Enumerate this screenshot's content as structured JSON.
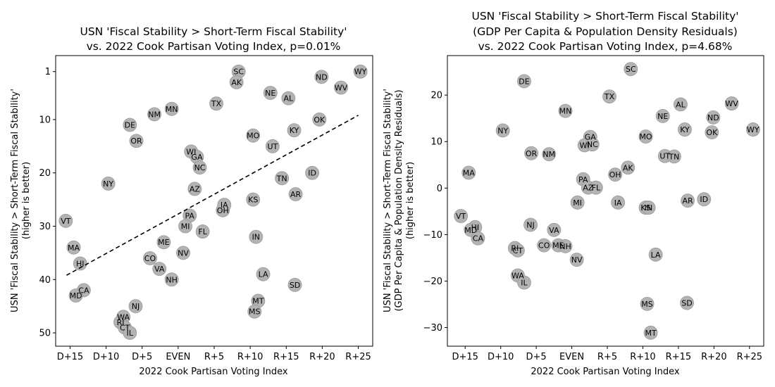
{
  "chart_data": [
    {
      "type": "scatter",
      "title_lines": [
        "USN 'Fiscal Stability > Short-Term Fiscal Stability'",
        "vs. 2022 Cook Partisan Voting Index, p=0.01%"
      ],
      "xlabel": "2022 Cook Partisan Voting Index",
      "ylabel_lines": [
        "USN 'Fiscal Stability > Short-Term Fiscal Stability'",
        "(higher is better)"
      ],
      "xlim": [
        -17,
        27
      ],
      "ylim": [
        52.5,
        -2
      ],
      "y_inverted": true,
      "x_ticks": [
        -15,
        -10,
        -5,
        0,
        5,
        10,
        15,
        20,
        25
      ],
      "x_tick_labels": [
        "D+15",
        "D+10",
        "D+5",
        "EVEN",
        "R+5",
        "R+10",
        "R+15",
        "R+20",
        "R+25"
      ],
      "y_ticks": [
        1,
        10,
        20,
        30,
        40,
        50
      ],
      "y_tick_labels": [
        "1",
        "10",
        "20",
        "30",
        "40",
        "50"
      ],
      "trendline": {
        "x": [
          -15.5,
          25
        ],
        "y": [
          39.2,
          9.2
        ],
        "style": "dashed",
        "color": "#000000"
      },
      "marker_color": "#b3b3b3",
      "marker_edge": "#999999",
      "points": [
        {
          "state": "VT",
          "x": -15.6,
          "y": 29
        },
        {
          "state": "MA",
          "x": -14.5,
          "y": 34
        },
        {
          "state": "HI",
          "x": -13.6,
          "y": 37
        },
        {
          "state": "CA",
          "x": -13.1,
          "y": 42
        },
        {
          "state": "MD",
          "x": -14.2,
          "y": 43
        },
        {
          "state": "NY",
          "x": -9.7,
          "y": 22
        },
        {
          "state": "DE",
          "x": -6.7,
          "y": 11
        },
        {
          "state": "OR",
          "x": -5.8,
          "y": 14
        },
        {
          "state": "NM",
          "x": -3.3,
          "y": 9
        },
        {
          "state": "MN",
          "x": -0.9,
          "y": 8
        },
        {
          "state": "WA",
          "x": -7.6,
          "y": 47
        },
        {
          "state": "RI",
          "x": -8.0,
          "y": 48
        },
        {
          "state": "CT",
          "x": -7.4,
          "y": 49
        },
        {
          "state": "IL",
          "x": -6.7,
          "y": 50
        },
        {
          "state": "NJ",
          "x": -5.9,
          "y": 45
        },
        {
          "state": "CO",
          "x": -3.9,
          "y": 36
        },
        {
          "state": "VA",
          "x": -2.6,
          "y": 38
        },
        {
          "state": "ME",
          "x": -2.0,
          "y": 33
        },
        {
          "state": "NH",
          "x": -0.9,
          "y": 40
        },
        {
          "state": "NV",
          "x": 0.7,
          "y": 35
        },
        {
          "state": "WI",
          "x": 1.8,
          "y": 16
        },
        {
          "state": "GA",
          "x": 2.6,
          "y": 17
        },
        {
          "state": "NC",
          "x": 3.0,
          "y": 19
        },
        {
          "state": "AZ",
          "x": 2.3,
          "y": 23
        },
        {
          "state": "PA",
          "x": 1.6,
          "y": 28
        },
        {
          "state": "MI",
          "x": 1.0,
          "y": 30
        },
        {
          "state": "FL",
          "x": 3.4,
          "y": 31
        },
        {
          "state": "OH",
          "x": 6.2,
          "y": 27
        },
        {
          "state": "IA",
          "x": 6.4,
          "y": 26
        },
        {
          "state": "TX",
          "x": 5.3,
          "y": 7
        },
        {
          "state": "SC",
          "x": 8.4,
          "y": 1
        },
        {
          "state": "AK",
          "x": 8.1,
          "y": 3
        },
        {
          "state": "NE",
          "x": 12.8,
          "y": 5
        },
        {
          "state": "AL",
          "x": 15.3,
          "y": 6
        },
        {
          "state": "MO",
          "x": 10.4,
          "y": 13
        },
        {
          "state": "UT",
          "x": 13.1,
          "y": 15
        },
        {
          "state": "KS",
          "x": 10.4,
          "y": 25
        },
        {
          "state": "IN",
          "x": 10.8,
          "y": 32
        },
        {
          "state": "LA",
          "x": 11.8,
          "y": 39
        },
        {
          "state": "MT",
          "x": 11.1,
          "y": 44
        },
        {
          "state": "MS",
          "x": 10.6,
          "y": 46
        },
        {
          "state": "KY",
          "x": 16.1,
          "y": 12
        },
        {
          "state": "TN",
          "x": 14.4,
          "y": 21
        },
        {
          "state": "AR",
          "x": 16.3,
          "y": 24
        },
        {
          "state": "SD",
          "x": 16.2,
          "y": 41
        },
        {
          "state": "ID",
          "x": 18.6,
          "y": 20
        },
        {
          "state": "OK",
          "x": 19.6,
          "y": 10
        },
        {
          "state": "ND",
          "x": 19.9,
          "y": 2
        },
        {
          "state": "WV",
          "x": 22.6,
          "y": 4
        },
        {
          "state": "WY",
          "x": 25.3,
          "y": 1
        }
      ]
    },
    {
      "type": "scatter",
      "title_lines": [
        "USN 'Fiscal Stability > Short-Term Fiscal Stability'",
        "(GDP Per Capita & Population Density Residuals)",
        "vs. 2022 Cook Partisan Voting Index, p=4.68%"
      ],
      "xlabel": "2022 Cook Partisan Voting Index",
      "ylabel_lines": [
        "USN 'Fiscal Stability > Short-Term Fiscal Stability'",
        "(GDP Per Capita & Population Density Residuals)",
        "(higher is better)"
      ],
      "xlim": [
        -17.5,
        27
      ],
      "ylim": [
        -34,
        28.5
      ],
      "y_inverted": false,
      "x_ticks": [
        -15,
        -10,
        -5,
        0,
        5,
        10,
        15,
        20,
        25
      ],
      "x_tick_labels": [
        "D+15",
        "D+10",
        "D+5",
        "EVEN",
        "R+5",
        "R+10",
        "R+15",
        "R+20",
        "R+25"
      ],
      "y_ticks": [
        -30,
        -20,
        -10,
        0,
        10,
        20
      ],
      "y_tick_labels": [
        "−30",
        "−20",
        "−10",
        "0",
        "10",
        "20"
      ],
      "marker_color": "#b3b3b3",
      "marker_edge": "#999999",
      "points": [
        {
          "state": "VT",
          "x": -15.6,
          "y": -6
        },
        {
          "state": "MA",
          "x": -14.5,
          "y": 3.3
        },
        {
          "state": "HI",
          "x": -13.6,
          "y": -8.4
        },
        {
          "state": "MD",
          "x": -14.2,
          "y": -9
        },
        {
          "state": "CA",
          "x": -13.2,
          "y": -10.8
        },
        {
          "state": "NY",
          "x": -9.7,
          "y": 12.4
        },
        {
          "state": "DE",
          "x": -6.7,
          "y": 23
        },
        {
          "state": "OR",
          "x": -5.7,
          "y": 7.5
        },
        {
          "state": "NM",
          "x": -3.2,
          "y": 7.3
        },
        {
          "state": "MN",
          "x": -0.9,
          "y": 16.6
        },
        {
          "state": "NJ",
          "x": -5.8,
          "y": -7.9
        },
        {
          "state": "RI",
          "x": -8.0,
          "y": -12.9
        },
        {
          "state": "CT",
          "x": -7.6,
          "y": -13.4
        },
        {
          "state": "WA",
          "x": -7.6,
          "y": -18.8
        },
        {
          "state": "IL",
          "x": -6.7,
          "y": -20.3
        },
        {
          "state": "CO",
          "x": -3.9,
          "y": -12.3
        },
        {
          "state": "VA",
          "x": -2.5,
          "y": -9
        },
        {
          "state": "ME",
          "x": -1.9,
          "y": -12.3
        },
        {
          "state": "NH",
          "x": -0.9,
          "y": -12.5
        },
        {
          "state": "NV",
          "x": 0.7,
          "y": -15.4
        },
        {
          "state": "MI",
          "x": 0.8,
          "y": -3.1
        },
        {
          "state": "GA",
          "x": 2.6,
          "y": 11
        },
        {
          "state": "WI",
          "x": 1.8,
          "y": 9.2
        },
        {
          "state": "NC",
          "x": 2.9,
          "y": 9.4
        },
        {
          "state": "PA",
          "x": 1.6,
          "y": 1.9
        },
        {
          "state": "AZ",
          "x": 2.3,
          "y": 0.1
        },
        {
          "state": "FL",
          "x": 3.4,
          "y": 0.1
        },
        {
          "state": "OH",
          "x": 6.1,
          "y": 2.9
        },
        {
          "state": "IA",
          "x": 6.5,
          "y": -3.1
        },
        {
          "state": "AK",
          "x": 7.9,
          "y": 4.4
        },
        {
          "state": "TX",
          "x": 5.3,
          "y": 19.7
        },
        {
          "state": "SC",
          "x": 8.3,
          "y": 25.6
        },
        {
          "state": "MO",
          "x": 10.4,
          "y": 11.1
        },
        {
          "state": "NE",
          "x": 12.8,
          "y": 15.5
        },
        {
          "state": "UT",
          "x": 13.1,
          "y": 6.9
        },
        {
          "state": "TN",
          "x": 14.4,
          "y": 6.8
        },
        {
          "state": "AL",
          "x": 15.3,
          "y": 18
        },
        {
          "state": "KS",
          "x": 10.4,
          "y": -4.2
        },
        {
          "state": "IN",
          "x": 10.8,
          "y": -4.2
        },
        {
          "state": "LA",
          "x": 11.8,
          "y": -14.3
        },
        {
          "state": "MS",
          "x": 10.6,
          "y": -24.9
        },
        {
          "state": "MT",
          "x": 11.1,
          "y": -31.1
        },
        {
          "state": "KY",
          "x": 15.9,
          "y": 12.6
        },
        {
          "state": "AR",
          "x": 16.3,
          "y": -2.7
        },
        {
          "state": "SD",
          "x": 16.2,
          "y": -24.7
        },
        {
          "state": "ID",
          "x": 18.6,
          "y": -2.4
        },
        {
          "state": "OK",
          "x": 19.7,
          "y": 12
        },
        {
          "state": "ND",
          "x": 19.9,
          "y": 15.2
        },
        {
          "state": "WV",
          "x": 22.5,
          "y": 18.2
        },
        {
          "state": "WY",
          "x": 25.5,
          "y": 12.6
        }
      ]
    }
  ]
}
